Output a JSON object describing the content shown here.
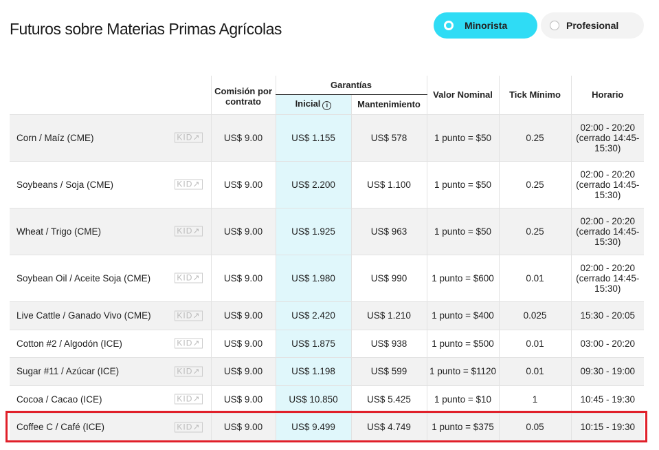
{
  "title": "Futuros sobre Materias Primas Agrícolas",
  "toggle": {
    "options": [
      "Minorista",
      "Profesional"
    ],
    "selected": "Minorista",
    "accent": "#2fdcf5"
  },
  "headers": {
    "comision": "Comisión por contrato",
    "garantias": "Garantías",
    "inicial": "Inicial",
    "mantenimiento": "Mantenimiento",
    "valor": "Valor Nominal",
    "tick": "Tick Mínimo",
    "horario": "Horario"
  },
  "kid_label": "KID",
  "rows": [
    {
      "name": "Corn / Maíz (CME)",
      "comision": "US$ 9.00",
      "inicial": "US$ 1.155",
      "mant": "US$ 578",
      "valor": "1 punto = $50",
      "tick": "0.25",
      "horario": "02:00 - 20:20 (cerrado 14:45-15:30)"
    },
    {
      "name": "Soybeans / Soja (CME)",
      "comision": "US$ 9.00",
      "inicial": "US$ 2.200",
      "mant": "US$ 1.100",
      "valor": "1 punto = $50",
      "tick": "0.25",
      "horario": "02:00 - 20:20 (cerrado 14:45-15:30)"
    },
    {
      "name": "Wheat / Trigo (CME)",
      "comision": "US$ 9.00",
      "inicial": "US$ 1.925",
      "mant": "US$ 963",
      "valor": "1 punto = $50",
      "tick": "0.25",
      "horario": "02:00 - 20:20 (cerrado 14:45-15:30)"
    },
    {
      "name": "Soybean Oil / Aceite Soja (CME)",
      "comision": "US$ 9.00",
      "inicial": "US$ 1.980",
      "mant": "US$ 990",
      "valor": "1 punto = $600",
      "tick": "0.01",
      "horario": "02:00 - 20:20 (cerrado 14:45-15:30)"
    },
    {
      "name": "Live Cattle / Ganado Vivo (CME)",
      "comision": "US$ 9.00",
      "inicial": "US$ 2.420",
      "mant": "US$ 1.210",
      "valor": "1 punto = $400",
      "tick": "0.025",
      "horario": "15:30 - 20:05"
    },
    {
      "name": "Cotton #2 / Algodón (ICE)",
      "comision": "US$ 9.00",
      "inicial": "US$ 1.875",
      "mant": "US$ 938",
      "valor": "1 punto = $500",
      "tick": "0.01",
      "horario": "03:00 - 20:20"
    },
    {
      "name": "Sugar #11 / Azúcar (ICE)",
      "comision": "US$ 9.00",
      "inicial": "US$ 1.198",
      "mant": "US$ 599",
      "valor": "1 punto = $1120",
      "tick": "0.01",
      "horario": "09:30 - 19:00"
    },
    {
      "name": "Cocoa / Cacao (ICE)",
      "comision": "US$ 9.00",
      "inicial": "US$ 10.850",
      "mant": "US$ 5.425",
      "valor": "1 punto = $10",
      "tick": "1",
      "horario": "10:45 - 19:30"
    },
    {
      "name": "Coffee C / Café (ICE)",
      "comision": "US$ 9.00",
      "inicial": "US$ 9.499",
      "mant": "US$ 4.749",
      "valor": "1 punto = $375",
      "tick": "0.05",
      "horario": "10:15 - 19:30"
    }
  ],
  "highlight_color": "#e0202a"
}
